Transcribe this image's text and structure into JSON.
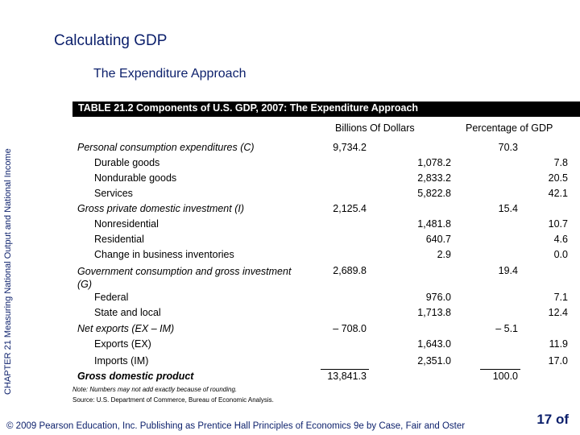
{
  "slide": {
    "title": "Calculating GDP",
    "subtitle": "The Expenditure Approach",
    "side_label": "CHAPTER 21 Measuring National Output and National Income"
  },
  "table": {
    "caption": "TABLE 21.2  Components of U.S. GDP, 2007:  The Expenditure Approach",
    "col_billions": "Billions Of Dollars",
    "col_percent": "Percentage of GDP",
    "pce": {
      "label": "Personal consumption expenditures (C)",
      "total": "9,734.2",
      "pct": "70.3"
    },
    "durable": {
      "label": "Durable goods",
      "value": "1,078.2",
      "pct": "7.8"
    },
    "nondurable": {
      "label": "Nondurable goods",
      "value": "2,833.2",
      "pct": "20.5"
    },
    "services": {
      "label": "Services",
      "value": "5,822.8",
      "pct": "42.1"
    },
    "gpdi": {
      "label": "Gross private domestic investment (I)",
      "total": "2,125.4",
      "pct": "15.4"
    },
    "nonres": {
      "label": "Nonresidential",
      "value": "1,481.8",
      "pct": "10.7"
    },
    "res": {
      "label": "Residential",
      "value": "640.7",
      "pct": "4.6"
    },
    "inventories": {
      "label": "Change in business inventories",
      "value": "2.9",
      "pct": "0.0"
    },
    "gov": {
      "label": "Government consumption and gross investment (G)",
      "total": "2,689.8",
      "pct": "19.4"
    },
    "federal": {
      "label": "Federal",
      "value": "976.0",
      "pct": "7.1"
    },
    "state": {
      "label": "State and local",
      "value": "1,713.8",
      "pct": "12.4"
    },
    "netx": {
      "label": "Net exports (EX – IM)",
      "total": "– 708.0",
      "pct": "– 5.1"
    },
    "exports": {
      "label": "Exports (EX)",
      "value": "1,643.0",
      "pct": "11.9"
    },
    "imports": {
      "label": "Imports (IM)",
      "value": "2,351.0",
      "pct": "17.0"
    },
    "gdp": {
      "label": "Gross domestic product",
      "total": "13,841.3",
      "pct": "100.0"
    }
  },
  "note": "Note: Numbers may not add exactly because of rounding.",
  "source": "Source: U.S. Department of Commerce, Bureau of Economic Analysis.",
  "footer": "© 2009 Pearson Education, Inc. Publishing as Prentice Hall  Principles of Economics 9e by Case, Fair and Oster",
  "page_number": "17 of"
}
